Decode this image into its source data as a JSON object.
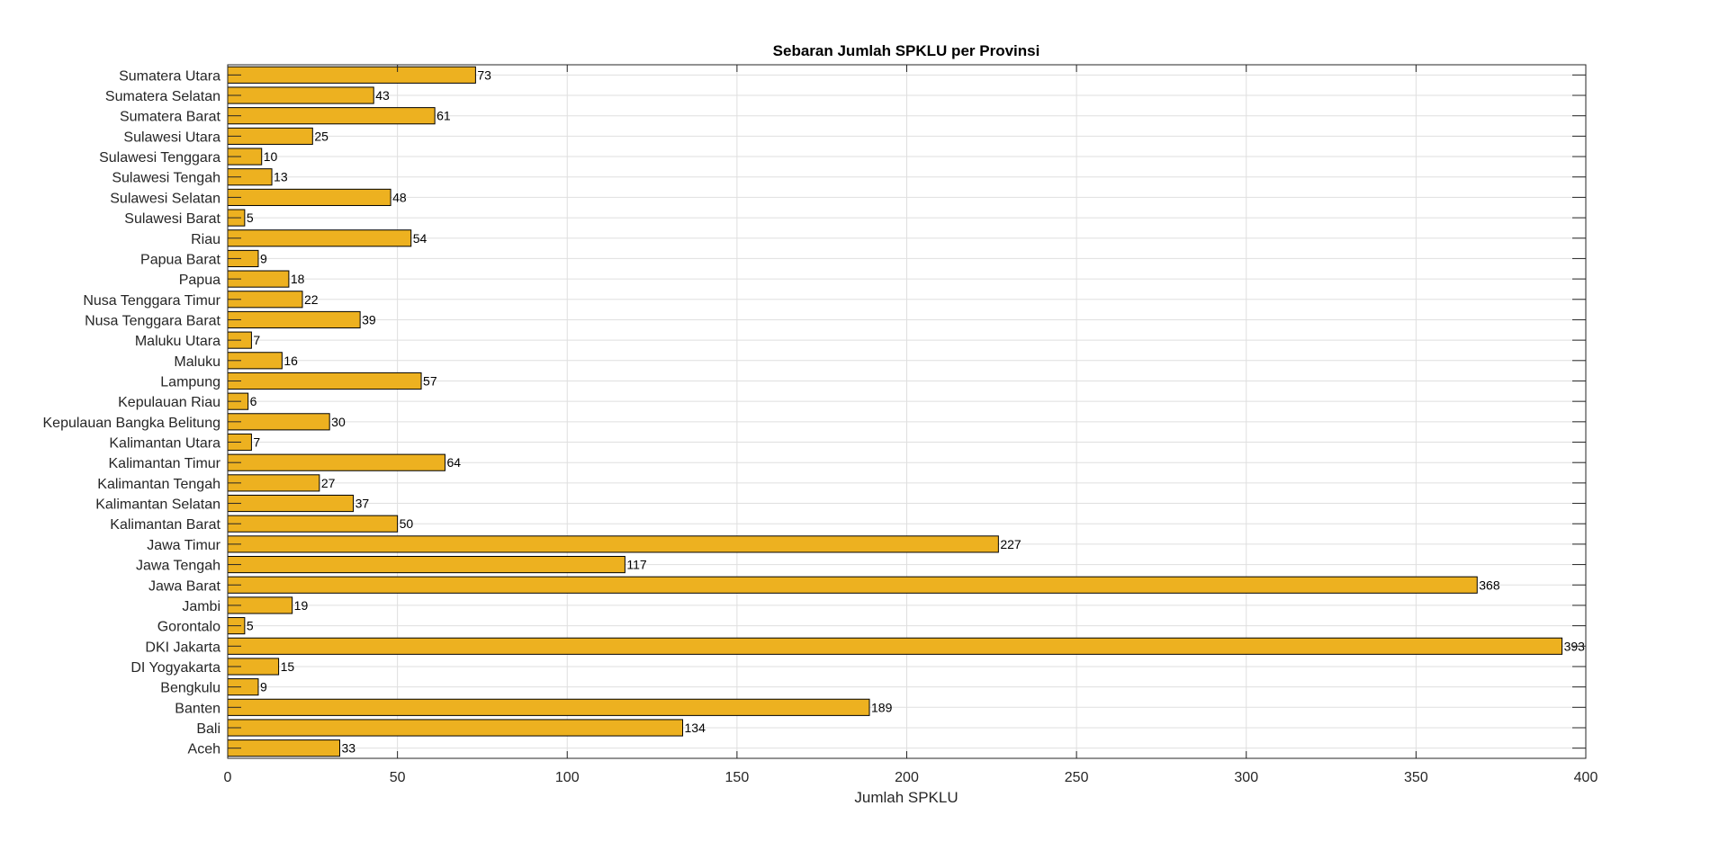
{
  "chart_data": {
    "type": "bar",
    "orientation": "horizontal",
    "title": "Sebaran Jumlah SPKLU per Provinsi",
    "xlabel": "Jumlah SPKLU",
    "ylabel": "",
    "xlim": [
      0,
      400
    ],
    "xticks": [
      0,
      50,
      100,
      150,
      200,
      250,
      300,
      350,
      400
    ],
    "grid": true,
    "bar_color": "#EDB120",
    "bar_edge_color": "#000000",
    "categories": [
      "Aceh",
      "Bali",
      "Banten",
      "Bengkulu",
      "DI Yogyakarta",
      "DKI Jakarta",
      "Gorontalo",
      "Jambi",
      "Jawa Barat",
      "Jawa Tengah",
      "Jawa Timur",
      "Kalimantan Barat",
      "Kalimantan Selatan",
      "Kalimantan Tengah",
      "Kalimantan Timur",
      "Kalimantan Utara",
      "Kepulauan Bangka Belitung",
      "Kepulauan Riau",
      "Lampung",
      "Maluku",
      "Maluku Utara",
      "Nusa Tenggara Barat",
      "Nusa Tenggara Timur",
      "Papua",
      "Papua Barat",
      "Riau",
      "Sulawesi Barat",
      "Sulawesi Selatan",
      "Sulawesi Tengah",
      "Sulawesi Tenggara",
      "Sulawesi Utara",
      "Sumatera Barat",
      "Sumatera Selatan",
      "Sumatera Utara"
    ],
    "values": [
      33,
      134,
      189,
      9,
      15,
      393,
      5,
      19,
      368,
      117,
      227,
      50,
      37,
      27,
      64,
      7,
      30,
      6,
      57,
      16,
      7,
      39,
      22,
      18,
      9,
      54,
      5,
      48,
      13,
      10,
      25,
      61,
      43,
      73
    ],
    "data_labels": [
      "33",
      "134",
      "189",
      "9",
      "15",
      "393",
      "5",
      "19",
      "368",
      "117",
      "227",
      "50",
      "37",
      "27",
      "64",
      "7",
      "30",
      "6",
      "57",
      "16",
      "7",
      "39",
      "22",
      "18",
      "9",
      "54",
      "5",
      "48",
      "13",
      "10",
      "25",
      "61",
      "43",
      "73"
    ]
  }
}
